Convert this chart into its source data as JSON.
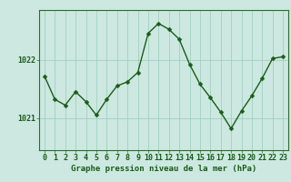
{
  "x": [
    0,
    1,
    2,
    3,
    4,
    5,
    6,
    7,
    8,
    9,
    10,
    11,
    12,
    13,
    14,
    15,
    16,
    17,
    18,
    19,
    20,
    21,
    22,
    23
  ],
  "y": [
    1021.72,
    1021.32,
    1021.22,
    1021.45,
    1021.28,
    1021.05,
    1021.32,
    1021.55,
    1021.62,
    1021.78,
    1022.45,
    1022.62,
    1022.52,
    1022.35,
    1021.92,
    1021.58,
    1021.35,
    1021.1,
    1020.82,
    1021.12,
    1021.38,
    1021.68,
    1022.02,
    1022.05
  ],
  "line_color": "#1a5c1a",
  "marker": "D",
  "marker_size": 2.5,
  "line_width": 1.0,
  "background_color": "#cce8e0",
  "plot_bg_color": "#cce8e0",
  "grid_color": "#99ccbb",
  "xlabel": "Graphe pression niveau de la mer (hPa)",
  "xlabel_fontsize": 6.5,
  "ytick_labels": [
    "1021",
    "1022"
  ],
  "ytick_values": [
    1021,
    1022
  ],
  "ylim": [
    1020.45,
    1022.85
  ],
  "xlim": [
    -0.5,
    23.5
  ],
  "tick_fontsize": 6.0,
  "line_dark": "#1a5c1a",
  "border_color": "#2a6e2a",
  "bottom_bar_color": "#3a7a3a"
}
